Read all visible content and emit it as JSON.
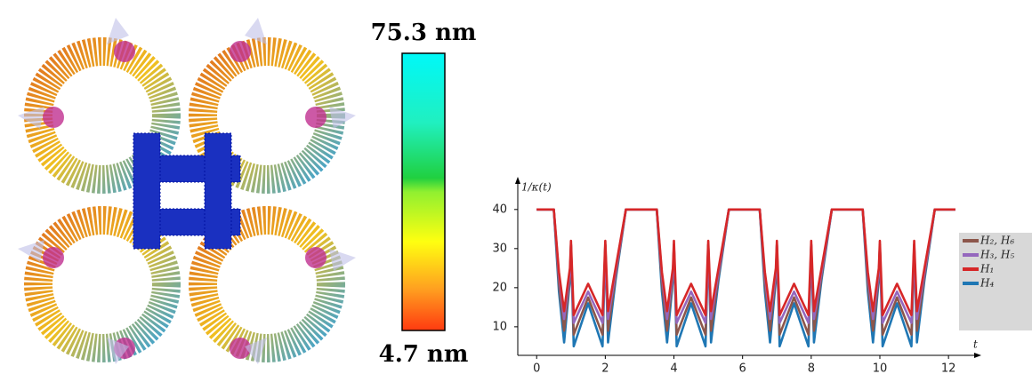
{
  "colorbar": {
    "max_label": "75.3 nm",
    "min_label": "4.7 nm"
  },
  "chart_data": {
    "type": "line",
    "y_label": "1/κ(t)",
    "x_label": "t",
    "x": [
      0,
      0.5,
      0.65,
      0.8,
      0.97,
      1.0,
      1.08,
      1.5,
      1.92,
      2.0,
      2.08,
      2.3,
      2.6,
      3.5,
      3.65,
      3.8,
      3.97,
      4.0,
      4.08,
      4.5,
      4.92,
      5.0,
      5.08,
      5.3,
      5.6,
      6.5,
      6.65,
      6.8,
      6.97,
      7.0,
      7.08,
      7.5,
      7.92,
      8.0,
      8.08,
      8.3,
      8.6,
      9.5,
      9.65,
      9.8,
      9.97,
      10.0,
      10.08,
      10.5,
      10.92,
      11.0,
      11.08,
      11.3,
      11.6,
      12.2
    ],
    "series": [
      {
        "name": "H₂, H₆",
        "color": "#8c564b",
        "values": [
          40,
          40,
          21,
          9,
          23,
          31,
          8,
          17.5,
          8,
          31,
          9,
          23,
          40,
          40,
          21,
          9,
          23,
          31,
          8,
          17.5,
          8,
          31,
          9,
          23,
          40,
          40,
          21,
          9,
          23,
          31,
          8,
          17.5,
          8,
          31,
          9,
          23,
          40,
          40,
          21,
          9,
          23,
          31,
          8,
          17.5,
          8,
          31,
          9,
          23,
          40,
          40
        ]
      },
      {
        "name": "H₃, H₅",
        "color": "#9467bd",
        "values": [
          40,
          40,
          23,
          12,
          24,
          29,
          11,
          19,
          11,
          29,
          12,
          24,
          40,
          40,
          23,
          12,
          24,
          29,
          11,
          19,
          11,
          29,
          12,
          24,
          40,
          40,
          23,
          12,
          24,
          29,
          11,
          19,
          11,
          29,
          12,
          24,
          40,
          40,
          23,
          12,
          24,
          29,
          11,
          19,
          11,
          29,
          12,
          24,
          40,
          40
        ]
      },
      {
        "name": "H₁",
        "color": "#d62728",
        "values": [
          40,
          40,
          24,
          14,
          25,
          32,
          13,
          21,
          13,
          32,
          14,
          25,
          40,
          40,
          24,
          14,
          25,
          32,
          13,
          21,
          13,
          32,
          14,
          25,
          40,
          40,
          24,
          14,
          25,
          32,
          13,
          21,
          13,
          32,
          14,
          25,
          40,
          40,
          24,
          14,
          25,
          32,
          13,
          21,
          13,
          32,
          14,
          25,
          40,
          40
        ]
      },
      {
        "name": "H₄",
        "color": "#1f77b4",
        "values": [
          40,
          40,
          19,
          6,
          22,
          31,
          5,
          16,
          5,
          31,
          6,
          22,
          40,
          40,
          19,
          6,
          22,
          31,
          5,
          16,
          5,
          31,
          6,
          22,
          40,
          40,
          19,
          6,
          22,
          31,
          5,
          16,
          5,
          31,
          6,
          22,
          40,
          40,
          19,
          6,
          22,
          31,
          5,
          16,
          5,
          31,
          6,
          22,
          40,
          40
        ]
      }
    ],
    "xlim": [
      -0.55,
      12.8
    ],
    "ylim": [
      2.7,
      47
    ],
    "xticks": [
      0,
      2,
      4,
      6,
      8,
      10,
      12
    ],
    "yticks": [
      10,
      20,
      30,
      40
    ],
    "grid": false,
    "legend": "right"
  }
}
